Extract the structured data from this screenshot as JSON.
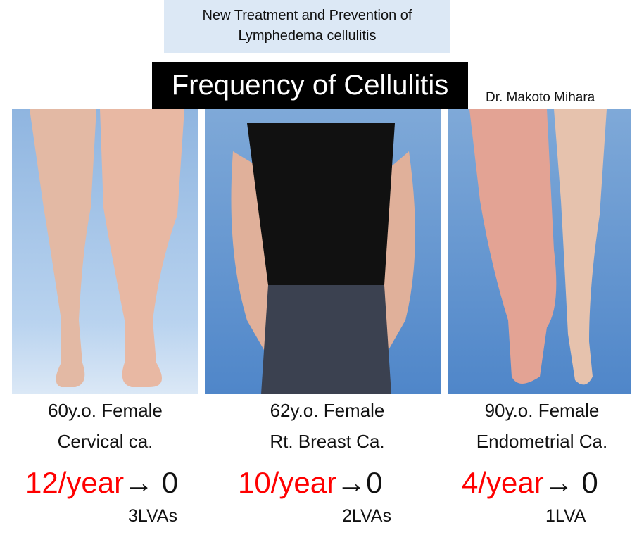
{
  "header": {
    "subtitle_line1": "New Treatment and Prevention of",
    "subtitle_line2": "Lymphedema cellulitis",
    "title": "Frequency of Cellulitis",
    "author": "Dr. Makoto Mihara"
  },
  "cases": [
    {
      "line1": "60y.o. Female",
      "line2": "Cervical ca.",
      "before": "12/year",
      "arrow": "→",
      "after": "0",
      "procedure": "3LVAs"
    },
    {
      "line1": "62y.o. Female",
      "line2": "Rt. Breast Ca.",
      "before": "10/year",
      "arrow": "→",
      "after": "0",
      "procedure": "2LVAs"
    },
    {
      "line1": "90y.o. Female",
      "line2": "Endometrial Ca.",
      "before": "4/year",
      "arrow": "→",
      "after": "0",
      "procedure": "1LVA"
    }
  ],
  "colors": {
    "highlight": "#ff0000",
    "subtitle_bg": "#dce8f5",
    "title_bg": "#000000"
  }
}
